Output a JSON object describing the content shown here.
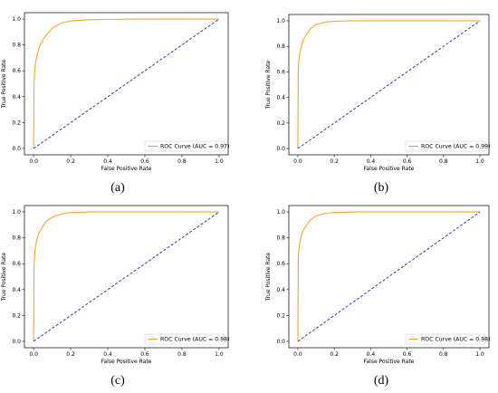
{
  "colors": {
    "roc": "#f5a623",
    "diagonal": "#1f1fbf",
    "axes": "#000000"
  },
  "chart_data": [
    {
      "type": "line",
      "panel_label": "(a)",
      "xlabel": "False Positive Rate",
      "ylabel": "True Positive Rate",
      "xlim": [
        0.0,
        1.0
      ],
      "ylim": [
        0.0,
        1.0
      ],
      "xticks": [
        "0.0",
        "0.2",
        "0.4",
        "0.6",
        "0.8",
        "1.0"
      ],
      "yticks": [
        "0.0",
        "0.2",
        "0.4",
        "0.6",
        "0.8",
        "1.0"
      ],
      "grid": false,
      "legend_position": "lower-right",
      "series": [
        {
          "name": "ROC Curve (AUC = 0.97)",
          "style": "solid",
          "x": [
            0,
            0.002,
            0.005,
            0.01,
            0.02,
            0.03,
            0.05,
            0.07,
            0.1,
            0.15,
            0.2,
            0.3,
            0.5,
            0.7,
            1.0
          ],
          "y": [
            0,
            0.48,
            0.58,
            0.66,
            0.73,
            0.78,
            0.84,
            0.88,
            0.93,
            0.97,
            0.985,
            0.995,
            0.999,
            1.0,
            1.0
          ]
        },
        {
          "style": "dashed",
          "x": [
            0,
            1
          ],
          "y": [
            0,
            1
          ]
        }
      ]
    },
    {
      "type": "line",
      "panel_label": "(b)",
      "xlabel": "False Positive Rate",
      "ylabel": "True Positive Rate",
      "xlim": [
        0.0,
        1.0
      ],
      "ylim": [
        0.0,
        1.0
      ],
      "xticks": [
        "0.0",
        "0.2",
        "0.4",
        "0.6",
        "0.8",
        "1.0"
      ],
      "yticks": [
        "0.0",
        "0.2",
        "0.4",
        "0.6",
        "0.8",
        "1.0"
      ],
      "grid": false,
      "legend_position": "lower-right",
      "series": [
        {
          "name": "ROC Curve (AUC = 0.99)",
          "style": "solid",
          "x": [
            0,
            0.002,
            0.005,
            0.01,
            0.02,
            0.03,
            0.05,
            0.07,
            0.1,
            0.15,
            0.2,
            0.3,
            0.5,
            1.0
          ],
          "y": [
            0,
            0.6,
            0.68,
            0.74,
            0.8,
            0.85,
            0.9,
            0.94,
            0.97,
            0.99,
            0.997,
            1.0,
            1.0,
            1.0
          ]
        },
        {
          "style": "dashed",
          "x": [
            0,
            1
          ],
          "y": [
            0,
            1
          ]
        }
      ]
    },
    {
      "type": "line",
      "panel_label": "(c)",
      "xlabel": "False Positive Rate",
      "ylabel": "True Positive Rate",
      "xlim": [
        0.0,
        1.0
      ],
      "ylim": [
        0.0,
        1.0
      ],
      "xticks": [
        "0.0",
        "0.2",
        "0.4",
        "0.6",
        "0.8",
        "1.0"
      ],
      "yticks": [
        "0.0",
        "0.2",
        "0.4",
        "0.6",
        "0.8",
        "1.0"
      ],
      "grid": false,
      "legend_position": "lower-right",
      "series": [
        {
          "name": "ROC Curve (AUC = 0.98)",
          "style": "solid",
          "x": [
            0,
            0.002,
            0.005,
            0.01,
            0.02,
            0.03,
            0.05,
            0.07,
            0.1,
            0.15,
            0.2,
            0.3,
            0.5,
            1.0
          ],
          "y": [
            0,
            0.55,
            0.66,
            0.73,
            0.8,
            0.84,
            0.89,
            0.93,
            0.96,
            0.985,
            0.995,
            1.0,
            1.0,
            1.0
          ]
        },
        {
          "style": "dashed",
          "x": [
            0,
            1
          ],
          "y": [
            0,
            1
          ]
        }
      ]
    },
    {
      "type": "line",
      "panel_label": "(d)",
      "xlabel": "False Positive Rate",
      "ylabel": "True Positive Rate",
      "xlim": [
        0.0,
        1.0
      ],
      "ylim": [
        0.0,
        1.0
      ],
      "xticks": [
        "0.0",
        "0.2",
        "0.4",
        "0.6",
        "0.8",
        "1.0"
      ],
      "yticks": [
        "0.0",
        "0.2",
        "0.4",
        "0.6",
        "0.8",
        "1.0"
      ],
      "grid": false,
      "legend_position": "lower-right",
      "series": [
        {
          "name": "ROC Curve (AUC = 0.98)",
          "style": "solid",
          "x": [
            0,
            0.002,
            0.005,
            0.01,
            0.02,
            0.03,
            0.05,
            0.07,
            0.1,
            0.15,
            0.2,
            0.3,
            0.5,
            1.0
          ],
          "y": [
            0,
            0.6,
            0.7,
            0.76,
            0.82,
            0.86,
            0.9,
            0.94,
            0.97,
            0.99,
            0.996,
            1.0,
            1.0,
            1.0
          ]
        },
        {
          "style": "dashed",
          "x": [
            0,
            1
          ],
          "y": [
            0,
            1
          ]
        }
      ]
    }
  ]
}
